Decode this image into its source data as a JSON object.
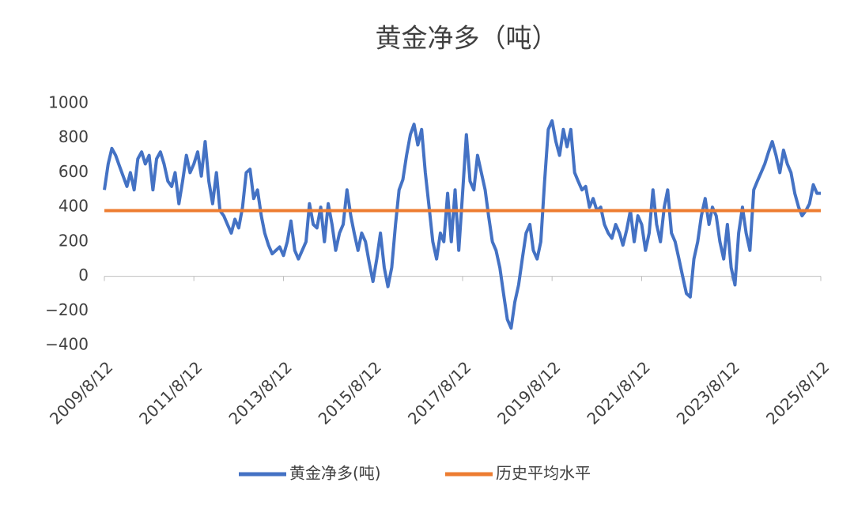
{
  "chart_data": {
    "type": "line",
    "title": "黄金净多（吨）",
    "x": [
      "2009/8/12",
      "2009/9/12",
      "2009/10/12",
      "2009/11/12",
      "2009/12/12",
      "2010/1/12",
      "2010/2/12",
      "2010/3/12",
      "2010/4/12",
      "2010/5/12",
      "2010/6/12",
      "2010/7/12",
      "2010/8/12",
      "2010/9/12",
      "2010/10/12",
      "2010/11/12",
      "2010/12/12",
      "2011/1/12",
      "2011/2/12",
      "2011/3/12",
      "2011/4/12",
      "2011/5/12",
      "2011/6/12",
      "2011/7/12",
      "2011/8/12",
      "2011/9/12",
      "2011/10/12",
      "2011/11/12",
      "2011/12/12",
      "2012/1/12",
      "2012/2/12",
      "2012/3/12",
      "2012/4/12",
      "2012/5/12",
      "2012/6/12",
      "2012/7/12",
      "2012/8/12",
      "2012/9/12",
      "2012/10/12",
      "2012/11/12",
      "2012/12/12",
      "2013/1/12",
      "2013/2/12",
      "2013/3/12",
      "2013/4/12",
      "2013/5/12",
      "2013/6/12",
      "2013/7/12",
      "2013/8/12",
      "2013/9/12",
      "2013/10/12",
      "2013/11/12",
      "2013/12/12",
      "2014/1/12",
      "2014/2/12",
      "2014/3/12",
      "2014/4/12",
      "2014/5/12",
      "2014/6/12",
      "2014/7/12",
      "2014/8/12",
      "2014/9/12",
      "2014/10/12",
      "2014/11/12",
      "2014/12/12",
      "2015/1/12",
      "2015/2/12",
      "2015/3/12",
      "2015/4/12",
      "2015/5/12",
      "2015/6/12",
      "2015/7/12",
      "2015/8/12",
      "2015/9/12",
      "2015/10/12",
      "2015/11/12",
      "2015/12/12",
      "2016/1/12",
      "2016/2/12",
      "2016/3/12",
      "2016/4/12",
      "2016/5/12",
      "2016/6/12",
      "2016/7/12",
      "2016/8/12",
      "2016/9/12",
      "2016/10/12",
      "2016/11/12",
      "2016/12/12",
      "2017/1/12",
      "2017/2/12",
      "2017/3/12",
      "2017/4/12",
      "2017/5/12",
      "2017/6/12",
      "2017/7/12",
      "2017/8/12",
      "2017/9/12",
      "2017/10/12",
      "2017/11/12",
      "2017/12/12",
      "2018/1/12",
      "2018/2/12",
      "2018/3/12",
      "2018/4/12",
      "2018/5/12",
      "2018/6/12",
      "2018/7/12",
      "2018/8/12",
      "2018/9/12",
      "2018/10/12",
      "2018/11/12",
      "2018/12/12",
      "2019/1/12",
      "2019/2/12",
      "2019/3/12",
      "2019/4/12",
      "2019/5/12",
      "2019/6/12",
      "2019/7/12",
      "2019/8/12",
      "2019/9/12",
      "2019/10/12",
      "2019/11/12",
      "2019/12/12",
      "2020/1/12",
      "2020/2/12",
      "2020/3/12",
      "2020/4/12",
      "2020/5/12",
      "2020/6/12",
      "2020/7/12",
      "2020/8/12",
      "2020/9/12",
      "2020/10/12",
      "2020/11/12",
      "2020/12/12",
      "2021/1/12",
      "2021/2/12",
      "2021/3/12",
      "2021/4/12",
      "2021/5/12",
      "2021/6/12",
      "2021/7/12",
      "2021/8/12",
      "2021/9/12",
      "2021/10/12",
      "2021/11/12",
      "2021/12/12",
      "2022/1/12",
      "2022/2/12",
      "2022/3/12",
      "2022/4/12",
      "2022/5/12",
      "2022/6/12",
      "2022/7/12",
      "2022/8/12",
      "2022/9/12",
      "2022/10/12",
      "2022/11/12",
      "2022/12/12",
      "2023/1/12",
      "2023/2/12",
      "2023/3/12",
      "2023/4/12",
      "2023/5/12",
      "2023/6/12",
      "2023/7/12",
      "2023/8/12",
      "2023/9/12",
      "2023/10/12",
      "2023/11/12",
      "2023/12/12",
      "2024/1/12",
      "2024/2/12",
      "2024/3/12",
      "2024/4/12",
      "2024/5/12",
      "2024/6/12",
      "2024/7/12",
      "2024/8/12",
      "2024/9/12",
      "2024/10/12",
      "2024/11/12",
      "2024/12/12",
      "2025/1/12",
      "2025/2/12",
      "2025/3/12",
      "2025/4/12",
      "2025/5/12",
      "2025/6/12",
      "2025/7/12",
      "2025/8/12"
    ],
    "series": [
      {
        "name": "黄金净多(吨)",
        "color": "#4472c4",
        "values": [
          500,
          650,
          740,
          700,
          640,
          580,
          520,
          600,
          500,
          680,
          720,
          650,
          700,
          500,
          680,
          720,
          650,
          550,
          520,
          600,
          420,
          550,
          700,
          600,
          650,
          720,
          580,
          780,
          550,
          420,
          600,
          380,
          350,
          300,
          250,
          330,
          280,
          400,
          600,
          620,
          450,
          500,
          350,
          250,
          180,
          130,
          150,
          170,
          120,
          200,
          320,
          150,
          100,
          150,
          200,
          420,
          300,
          280,
          400,
          200,
          420,
          300,
          150,
          250,
          300,
          500,
          350,
          250,
          150,
          250,
          200,
          80,
          -30,
          100,
          250,
          50,
          -60,
          50,
          300,
          500,
          560,
          700,
          820,
          880,
          760,
          850,
          600,
          400,
          200,
          100,
          250,
          200,
          480,
          200,
          500,
          150,
          480,
          820,
          550,
          500,
          700,
          600,
          500,
          350,
          200,
          150,
          50,
          -100,
          -250,
          -300,
          -150,
          -50,
          100,
          250,
          300,
          150,
          100,
          200,
          550,
          850,
          900,
          780,
          700,
          850,
          750,
          850,
          600,
          550,
          500,
          520,
          400,
          450,
          380,
          400,
          300,
          250,
          220,
          300,
          250,
          180,
          270,
          380,
          200,
          350,
          300,
          150,
          250,
          500,
          300,
          200,
          400,
          500,
          250,
          200,
          100,
          0,
          -100,
          -120,
          100,
          200,
          350,
          450,
          300,
          400,
          350,
          200,
          100,
          300,
          50,
          -50,
          250,
          400,
          250,
          150,
          500,
          550,
          600,
          650,
          720,
          780,
          700,
          600,
          730,
          650,
          600,
          480,
          400,
          350,
          380,
          420,
          530,
          480,
          480
        ]
      },
      {
        "name": "历史平均水平",
        "color": "#ed7d31",
        "values": [
          380,
          380,
          380,
          380,
          380,
          380,
          380,
          380,
          380,
          380,
          380,
          380,
          380,
          380,
          380,
          380,
          380,
          380,
          380,
          380,
          380,
          380,
          380,
          380,
          380,
          380,
          380,
          380,
          380,
          380,
          380,
          380,
          380,
          380,
          380,
          380,
          380,
          380,
          380,
          380,
          380,
          380,
          380,
          380,
          380,
          380,
          380,
          380,
          380,
          380,
          380,
          380,
          380,
          380,
          380,
          380,
          380,
          380,
          380,
          380,
          380,
          380,
          380,
          380,
          380,
          380,
          380,
          380,
          380,
          380,
          380,
          380,
          380,
          380,
          380,
          380,
          380,
          380,
          380,
          380,
          380,
          380,
          380,
          380,
          380,
          380,
          380,
          380,
          380,
          380,
          380,
          380,
          380,
          380,
          380,
          380,
          380,
          380,
          380,
          380,
          380,
          380,
          380,
          380,
          380,
          380,
          380,
          380,
          380,
          380,
          380,
          380,
          380,
          380,
          380,
          380,
          380,
          380,
          380,
          380,
          380,
          380,
          380,
          380,
          380,
          380,
          380,
          380,
          380,
          380,
          380,
          380,
          380,
          380,
          380,
          380,
          380,
          380,
          380,
          380,
          380,
          380,
          380,
          380,
          380,
          380,
          380,
          380,
          380,
          380,
          380,
          380,
          380,
          380,
          380,
          380,
          380,
          380,
          380,
          380,
          380,
          380,
          380,
          380,
          380,
          380,
          380,
          380,
          380,
          380,
          380,
          380,
          380,
          380,
          380,
          380,
          380,
          380,
          380,
          380,
          380,
          380,
          380,
          380,
          380,
          380,
          380,
          380,
          380,
          380,
          380,
          380,
          380
        ]
      }
    ],
    "xlim": [
      "2009/8/12",
      "2025/8/12"
    ],
    "xticks": [
      "2009/8/12",
      "2011/8/12",
      "2013/8/12",
      "2015/8/12",
      "2017/8/12",
      "2019/8/12",
      "2021/8/12",
      "2023/8/12",
      "2025/8/12"
    ],
    "ylim": [
      -400,
      1000
    ],
    "yticks": [
      {
        "value": -400,
        "label": "−400"
      },
      {
        "value": -200,
        "label": "−200"
      },
      0,
      200,
      400,
      600,
      800,
      1000
    ],
    "grid": false,
    "legend": "bottom"
  }
}
